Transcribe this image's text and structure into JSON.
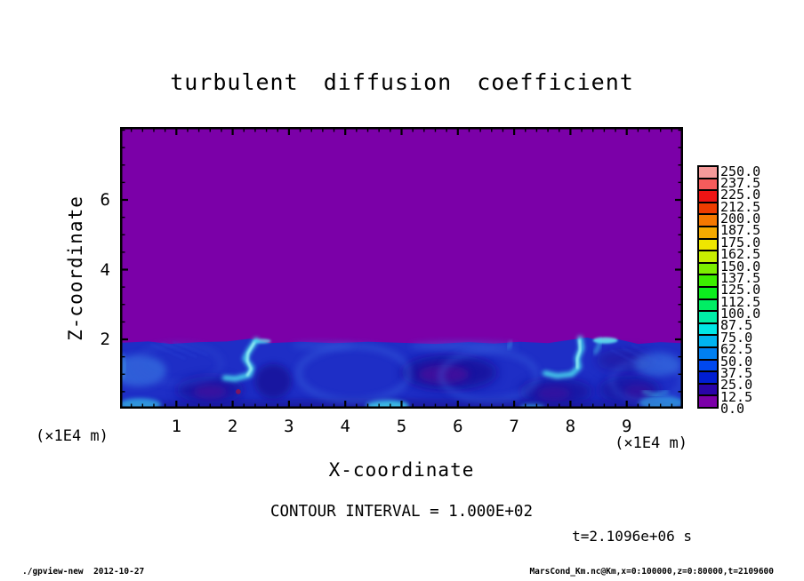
{
  "title": "turbulent diffusion coefficient",
  "axes": {
    "x": {
      "label": "X-coordinate",
      "unit": "(×1E4 m)",
      "major": [
        1,
        2,
        3,
        4,
        5,
        6,
        7,
        8,
        9
      ],
      "minor_step": 0.2,
      "range": [
        0,
        10
      ]
    },
    "z": {
      "label": "Z-coordinate",
      "unit": "(×1E4 m)",
      "major": [
        2,
        4,
        6
      ],
      "minor_step": 0.5,
      "range": [
        0,
        8.09
      ]
    }
  },
  "annotations": {
    "contour_interval": "CONTOUR INTERVAL = 1.000E+02",
    "time": "t=2.1096e+06 s"
  },
  "footer": {
    "left": "./gpview-new  2012-10-27",
    "right": "MarsCond_Km.nc@Km,x=0:100000,z=0:80000,t=2109600"
  },
  "colorbar": {
    "labels_top_to_bottom": [
      "250.0",
      "237.5",
      "225.0",
      "212.5",
      "200.0",
      "187.5",
      "175.0",
      "162.5",
      "150.0",
      "137.5",
      "125.0",
      "112.5",
      "100.0",
      "87.5",
      "75.0",
      "62.5",
      "50.0",
      "37.5",
      "25.0",
      "12.5",
      "0.0"
    ],
    "colors_top_to_bottom": [
      "#F59A9A",
      "#F55C5C",
      "#EE1414",
      "#EE3C00",
      "#F57800",
      "#F5AA00",
      "#EEE600",
      "#C8EE00",
      "#7CEE00",
      "#3CEE00",
      "#0CEE1E",
      "#00EE64",
      "#00EEA8",
      "#00E6E6",
      "#00B4F0",
      "#0080F0",
      "#0048EE",
      "#001ED2",
      "#2A04A8",
      "#7B00A8"
    ]
  },
  "chart_data": {
    "type": "heatmap",
    "title": "turbulent diffusion coefficient",
    "xlabel": "X-coordinate",
    "ylabel": "Z-coordinate",
    "x_unit_factor": "×1E4 m",
    "z_unit_factor": "×1E4 m",
    "xlim": [
      0,
      10
    ],
    "zlim": [
      0,
      8.09
    ],
    "contour_interval": 100.0,
    "levels": [
      0,
      12.5,
      25,
      37.5,
      50,
      62.5,
      75,
      87.5,
      100,
      112.5,
      125,
      137.5,
      150,
      162.5,
      175,
      187.5,
      200,
      212.5,
      225,
      237.5,
      250
    ],
    "time_label": "t=2.1096e+06 s",
    "field_summary": {
      "upper_region": "uniform value in 0–12.5 band (purple) for z above ≈2×1E4 m",
      "lower_region": "turbulent boundary layer below z≈2 with values mostly 25–62.5 (blues), eddy cores down to 0–25 (indigo/purple), plume streaks reaching 75–100 (cyan)",
      "plume_x_positions": [
        2.3,
        8.2
      ],
      "interface_height_z": 2.0
    },
    "plot_colors": {
      "background_purple": "#7B00A8",
      "base_blue": "#1E2EC6",
      "plume_cyan": "#4CE0F0"
    },
    "render_features": {
      "interface": [
        [
          0,
          1.9
        ],
        [
          0.5,
          1.94
        ],
        [
          0.9,
          1.87
        ],
        [
          1.4,
          1.92
        ],
        [
          1.9,
          1.94
        ],
        [
          2.3,
          2.02
        ],
        [
          2.65,
          1.89
        ],
        [
          3.2,
          1.93
        ],
        [
          3.8,
          1.89
        ],
        [
          4.4,
          1.93
        ],
        [
          5.0,
          1.9
        ],
        [
          5.6,
          1.87
        ],
        [
          6.2,
          1.92
        ],
        [
          6.65,
          1.88
        ],
        [
          7.1,
          1.93
        ],
        [
          7.6,
          1.89
        ],
        [
          8.05,
          2.0
        ],
        [
          8.3,
          2.05
        ],
        [
          8.55,
          1.96
        ],
        [
          8.85,
          2.0
        ],
        [
          9.2,
          1.87
        ],
        [
          9.6,
          1.92
        ],
        [
          10,
          1.89
        ]
      ],
      "ellipses": [
        {
          "x": 5.85,
          "z": 1.05,
          "rx": 0.85,
          "rz": 0.5,
          "fill": "#180C96",
          "op": 0.8,
          "blur": "b4"
        },
        {
          "x": 1.6,
          "z": 0.55,
          "rx": 0.6,
          "rz": 0.38,
          "fill": "#180C96",
          "op": 0.7,
          "blur": "b4"
        },
        {
          "x": 2.72,
          "z": 0.8,
          "rx": 0.33,
          "rz": 0.5,
          "fill": "#150C90",
          "op": 0.7,
          "blur": "b3"
        },
        {
          "x": 7.75,
          "z": 0.5,
          "rx": 0.65,
          "rz": 0.38,
          "fill": "#180C96",
          "op": 0.7,
          "blur": "b4"
        },
        {
          "x": 9.05,
          "z": 0.55,
          "rx": 0.55,
          "rz": 0.42,
          "fill": "#180C96",
          "op": 0.65,
          "blur": "b4"
        },
        {
          "x": 8.95,
          "z": 1.4,
          "rx": 0.5,
          "rz": 0.32,
          "fill": "#221090",
          "op": 0.5,
          "blur": "b4"
        },
        {
          "x": 5.0,
          "z": 0.06,
          "rx": 5.2,
          "rz": 0.2,
          "fill": "#140E86",
          "op": 0.55,
          "blur": "b3"
        },
        {
          "x": 5.75,
          "z": 1.0,
          "rx": 0.45,
          "rz": 0.27,
          "fill": "#56109B",
          "op": 0.6,
          "blur": "b3"
        },
        {
          "x": 1.6,
          "z": 0.5,
          "rx": 0.3,
          "rz": 0.2,
          "fill": "#56109B",
          "op": 0.5,
          "blur": "b3"
        },
        {
          "x": 7.7,
          "z": 0.45,
          "rx": 0.3,
          "rz": 0.2,
          "fill": "#50109B",
          "op": 0.45,
          "blur": "b3"
        },
        {
          "x": 9.2,
          "z": 0.5,
          "rx": 0.25,
          "rz": 0.22,
          "fill": "#50109B",
          "op": 0.4,
          "blur": "b3"
        },
        {
          "x": 0.32,
          "z": 1.1,
          "rx": 0.5,
          "rz": 0.45,
          "fill": "#3E86E8",
          "op": 0.55,
          "blur": "b3"
        },
        {
          "x": 9.55,
          "z": 1.28,
          "rx": 0.42,
          "rz": 0.34,
          "fill": "#3E86E8",
          "op": 0.5,
          "blur": "b3"
        },
        {
          "x": 6.1,
          "z": 1.8,
          "rx": 0.95,
          "rz": 0.14,
          "fill": "#3C66E4",
          "op": 0.45,
          "blur": "b3"
        },
        {
          "x": 3.6,
          "z": 1.82,
          "rx": 0.55,
          "rz": 0.12,
          "fill": "#3C66E4",
          "op": 0.35,
          "blur": "b3"
        },
        {
          "x": 4.75,
          "z": 0.1,
          "rx": 0.38,
          "rz": 0.16,
          "fill": "#3FD2EE",
          "op": 0.85,
          "blur": "b2"
        },
        {
          "x": 0.35,
          "z": 0.13,
          "rx": 0.38,
          "rz": 0.18,
          "fill": "#38C4EC",
          "op": 0.7,
          "blur": "b2"
        },
        {
          "x": 7.32,
          "z": 0.05,
          "rx": 0.22,
          "rz": 0.1,
          "fill": "#38C4EC",
          "op": 0.6,
          "blur": "b2"
        },
        {
          "x": 9.62,
          "z": 0.18,
          "rx": 0.4,
          "rz": 0.2,
          "fill": "#38C4EC",
          "op": 0.6,
          "blur": "b2"
        },
        {
          "x": 8.62,
          "z": 1.97,
          "rx": 0.22,
          "rz": 0.09,
          "fill": "#66EEF2",
          "op": 0.85,
          "blur": "b1"
        },
        {
          "x": 2.52,
          "z": 1.95,
          "rx": 0.16,
          "rz": 0.07,
          "fill": "#66EEF2",
          "op": 0.7,
          "blur": "b1"
        }
      ],
      "rings": [
        {
          "x": 4.15,
          "z": 1.02,
          "rx": 0.98,
          "rz": 0.78,
          "stroke": "#3A6BE2",
          "w": 5,
          "op": 0.55,
          "blur": "b3"
        },
        {
          "x": 6.55,
          "z": 0.95,
          "rx": 0.85,
          "rz": 0.7,
          "stroke": "#3A6BE2",
          "w": 5,
          "op": 0.5,
          "blur": "b3"
        },
        {
          "x": 1.05,
          "z": 1.3,
          "rx": 0.75,
          "rz": 0.55,
          "stroke": "#3558D8",
          "w": 4,
          "op": 0.4,
          "blur": "b3"
        },
        {
          "x": 9.35,
          "z": 0.8,
          "rx": 0.62,
          "rz": 0.58,
          "stroke": "#3A6BE2",
          "w": 4,
          "op": 0.45,
          "blur": "b3"
        }
      ],
      "streaks": [
        {
          "pts": [
            [
              2.42,
              1.98
            ],
            [
              2.3,
              1.7
            ],
            [
              2.22,
              1.45
            ],
            [
              2.34,
              1.18
            ],
            [
              2.3,
              0.98
            ],
            [
              2.05,
              0.87
            ],
            [
              1.86,
              0.9
            ]
          ],
          "stroke": "#4CE0F0",
          "w": 6,
          "op": 0.9,
          "blur": "b2"
        },
        {
          "pts": [
            [
              2.38,
              1.9
            ],
            [
              2.27,
              1.6
            ],
            [
              2.26,
              1.38
            ],
            [
              2.33,
              1.15
            ],
            [
              2.26,
              0.97
            ]
          ],
          "stroke": "#B0FFFA",
          "w": 2.5,
          "op": 0.9,
          "blur": "b1"
        },
        {
          "pts": [
            [
              8.17,
              2.03
            ],
            [
              8.2,
              1.75
            ],
            [
              8.12,
              1.45
            ],
            [
              8.15,
              1.2
            ],
            [
              8.02,
              1.0
            ],
            [
              7.76,
              0.95
            ],
            [
              7.55,
              1.03
            ]
          ],
          "stroke": "#4CE0F0",
          "w": 6,
          "op": 0.9,
          "blur": "b2"
        },
        {
          "pts": [
            [
              8.16,
              1.98
            ],
            [
              8.17,
              1.7
            ],
            [
              8.12,
              1.45
            ],
            [
              8.12,
              1.18
            ]
          ],
          "stroke": "#B0FFFA",
          "w": 2.5,
          "op": 0.85,
          "blur": "b1"
        },
        {
          "pts": [
            [
              8.52,
              1.98
            ],
            [
              8.5,
              1.78
            ],
            [
              8.44,
              1.62
            ]
          ],
          "stroke": "#4CE0F0",
          "w": 4,
          "op": 0.6,
          "blur": "b2"
        },
        {
          "pts": [
            [
              6.95,
              1.93
            ],
            [
              6.9,
              1.76
            ]
          ],
          "stroke": "#49C8EE",
          "w": 3,
          "op": 0.5,
          "blur": "b2"
        },
        {
          "pts": [
            [
              0.04,
              1.55
            ],
            [
              0.08,
              1.2
            ],
            [
              0.03,
              0.9
            ]
          ],
          "stroke": "#44B8EC",
          "w": 3,
          "op": 0.5,
          "blur": "b2"
        },
        {
          "pts": [
            [
              9.3,
              0.5
            ],
            [
              9.5,
              0.42
            ],
            [
              9.72,
              0.5
            ]
          ],
          "stroke": "#44CCEE",
          "w": 3.5,
          "op": 0.6,
          "blur": "b2"
        },
        {
          "pts": [
            [
              0.55,
              1.85
            ],
            [
              1.15,
              1.45
            ]
          ],
          "stroke": "#2A45D8",
          "w": 1.5,
          "op": 0.5,
          "blur": "b1"
        },
        {
          "pts": [
            [
              0.75,
              1.9
            ],
            [
              1.35,
              1.5
            ]
          ],
          "stroke": "#2A45D8",
          "w": 1.5,
          "op": 0.5,
          "blur": "b1"
        },
        {
          "pts": [
            [
              0.95,
              1.92
            ],
            [
              1.55,
              1.55
            ]
          ],
          "stroke": "#2A45D8",
          "w": 1.5,
          "op": 0.45,
          "blur": "b1"
        },
        {
          "pts": [
            [
              8.72,
              1.7
            ],
            [
              9.2,
              1.3
            ]
          ],
          "stroke": "#2A45D8",
          "w": 1.5,
          "op": 0.4,
          "blur": "b1"
        },
        {
          "pts": [
            [
              8.92,
              1.76
            ],
            [
              9.42,
              1.36
            ]
          ],
          "stroke": "#2A45D8",
          "w": 1.5,
          "op": 0.4,
          "blur": "b1"
        },
        {
          "pts": [
            [
              9.1,
              1.82
            ],
            [
              9.6,
              1.42
            ]
          ],
          "stroke": "#2A45D8",
          "w": 1.5,
          "op": 0.35,
          "blur": "b1"
        }
      ],
      "dots": [
        {
          "x": 2.1,
          "z": 0.5,
          "r": 0.045,
          "fill": "#8A1458",
          "op": 0.9
        }
      ]
    }
  }
}
